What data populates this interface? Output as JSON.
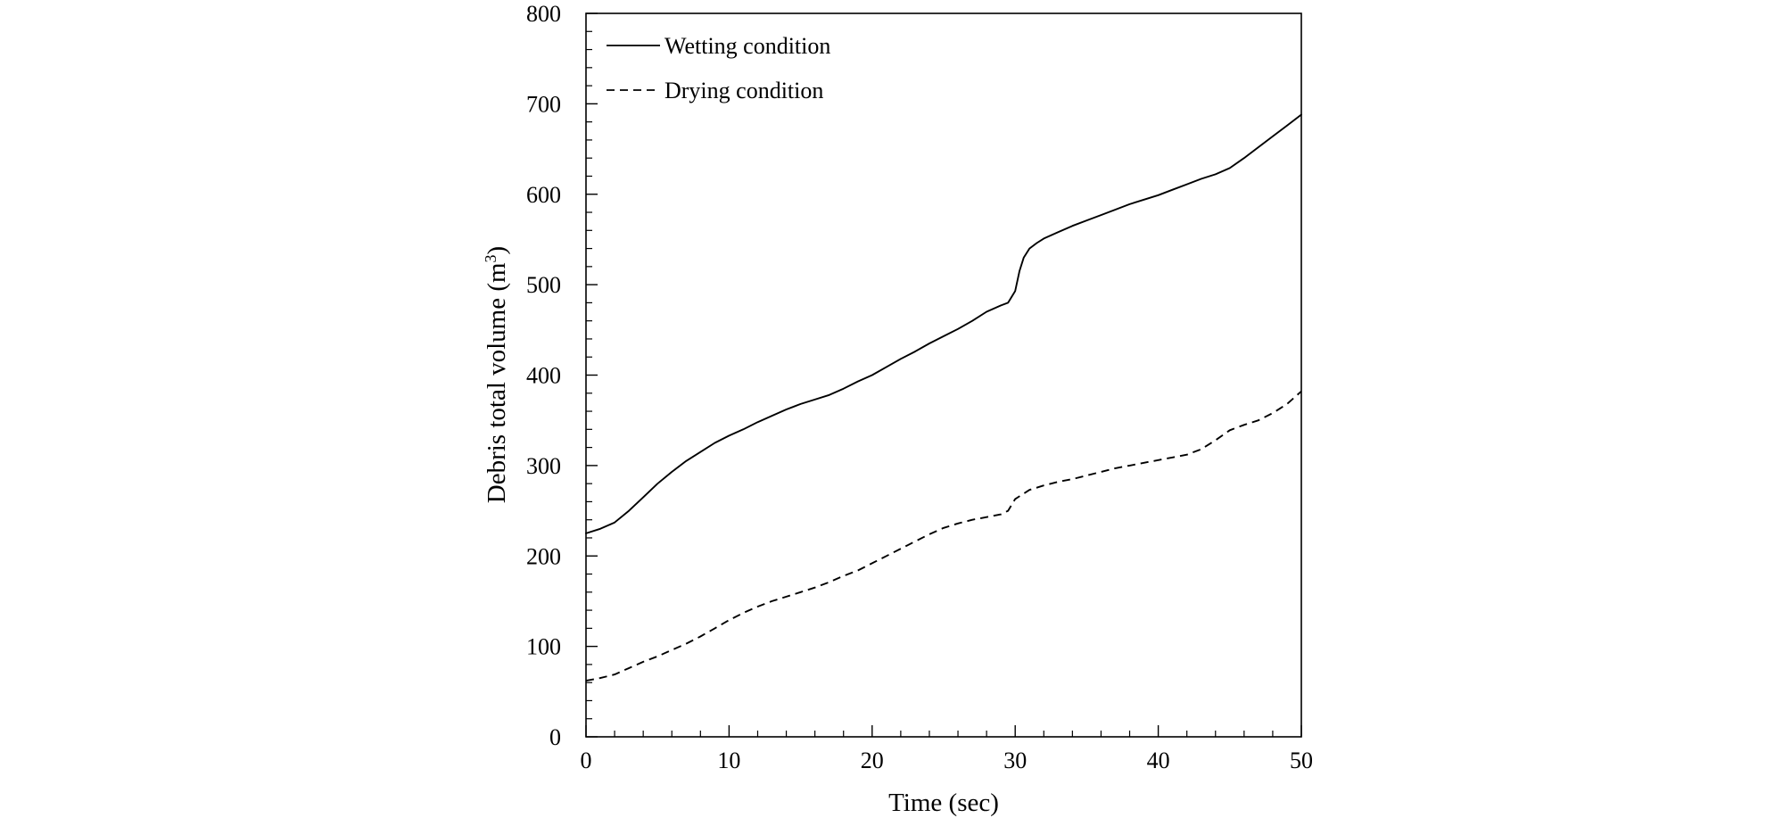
{
  "chart_data": {
    "type": "line",
    "title": "",
    "xlabel": "Time (sec)",
    "ylabel_main": "Debris total volume (m",
    "ylabel_sup": "3",
    "ylabel_close": ")",
    "xlim": [
      0,
      50
    ],
    "ylim": [
      0,
      800
    ],
    "xticks": [
      "0",
      "10",
      "20",
      "30",
      "40",
      "50"
    ],
    "yticks": [
      "0",
      "100",
      "200",
      "300",
      "400",
      "500",
      "600",
      "700",
      "800"
    ],
    "grid": false,
    "legend_position": "top-left",
    "series": [
      {
        "name": "Wetting condition",
        "style": "solid",
        "color": "#000000",
        "x": [
          0,
          1,
          2,
          3,
          4,
          5,
          6,
          7,
          8,
          9,
          10,
          11,
          12,
          13,
          14,
          15,
          16,
          17,
          18,
          19,
          20,
          21,
          22,
          23,
          24,
          25,
          26,
          27,
          28,
          29,
          29.5,
          30,
          30.3,
          30.6,
          31,
          31.5,
          32,
          33,
          34,
          35,
          36,
          37,
          38,
          39,
          40,
          41,
          42,
          43,
          44,
          45,
          46,
          47,
          48,
          49,
          50
        ],
        "values": [
          225,
          230,
          237,
          250,
          265,
          280,
          293,
          305,
          315,
          325,
          333,
          340,
          348,
          355,
          362,
          368,
          373,
          378,
          385,
          393,
          400,
          409,
          418,
          426,
          435,
          443,
          451,
          460,
          470,
          477,
          480,
          493,
          515,
          530,
          540,
          546,
          551,
          558,
          565,
          571,
          577,
          583,
          589,
          594,
          599,
          605,
          611,
          617,
          622,
          629,
          640,
          652,
          664,
          676,
          688
        ]
      },
      {
        "name": "Drying condition",
        "style": "dashed",
        "color": "#000000",
        "x": [
          0,
          1,
          2,
          3,
          4,
          5,
          6,
          7,
          8,
          9,
          10,
          11,
          12,
          13,
          14,
          15,
          16,
          17,
          18,
          19,
          20,
          21,
          22,
          23,
          24,
          25,
          26,
          27,
          28,
          29,
          29.5,
          30,
          30.5,
          31,
          32,
          33,
          34,
          35,
          36,
          37,
          38,
          39,
          40,
          41,
          42,
          43,
          44,
          45,
          46,
          47,
          48,
          49,
          50
        ],
        "values": [
          62,
          65,
          69,
          76,
          83,
          89,
          96,
          103,
          111,
          120,
          129,
          137,
          144,
          150,
          155,
          160,
          165,
          171,
          178,
          184,
          192,
          200,
          208,
          216,
          224,
          231,
          236,
          240,
          243,
          246,
          250,
          263,
          268,
          273,
          278,
          282,
          285,
          289,
          293,
          297,
          300,
          303,
          306,
          309,
          312,
          318,
          328,
          339,
          345,
          350,
          358,
          368,
          382
        ]
      }
    ]
  }
}
